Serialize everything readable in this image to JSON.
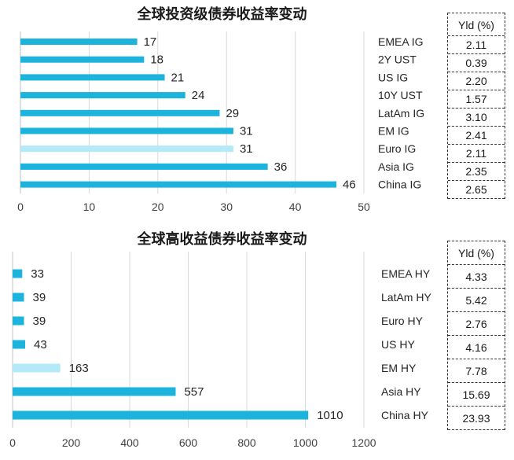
{
  "chart_data": [
    {
      "type": "bar",
      "orientation": "horizontal",
      "title": "全球投资级债券收益率变动",
      "categories": [
        "EMEA IG",
        "2Y UST",
        "US IG",
        "10Y UST",
        "LatAm IG",
        "EM IG",
        "Euro IG",
        "Asia IG",
        "China IG"
      ],
      "values": [
        17,
        18,
        21,
        24,
        29,
        31,
        31,
        36,
        46
      ],
      "highlight_index": 6,
      "xlim": [
        0,
        50
      ],
      "xticks": [
        0,
        10,
        20,
        30,
        40,
        50
      ],
      "grid": true,
      "colors": {
        "bar": "#1CB4DC",
        "highlight": "#B4EAF8"
      },
      "yield_table": {
        "header": "Yld (%)",
        "values": [
          "2.11",
          "0.39",
          "2.20",
          "1.57",
          "3.10",
          "2.41",
          "2.11",
          "2.35",
          "2.65"
        ]
      }
    },
    {
      "type": "bar",
      "orientation": "horizontal",
      "title": "全球高收益债券收益率变动",
      "categories": [
        "EMEA HY",
        "LatAm HY",
        "Euro HY",
        "US HY",
        "EM HY",
        "Asia HY",
        "China HY"
      ],
      "values": [
        33,
        39,
        39,
        43,
        163,
        557,
        1010
      ],
      "highlight_index": 4,
      "xlim": [
        0,
        1200
      ],
      "xticks": [
        0,
        200,
        400,
        600,
        800,
        1000,
        1200
      ],
      "grid": true,
      "colors": {
        "bar": "#1CB4DC",
        "highlight": "#B4EAF8"
      },
      "yield_table": {
        "header": "Yld (%)",
        "values": [
          "4.33",
          "5.42",
          "2.76",
          "4.16",
          "7.78",
          "15.69",
          "23.93"
        ]
      }
    }
  ]
}
